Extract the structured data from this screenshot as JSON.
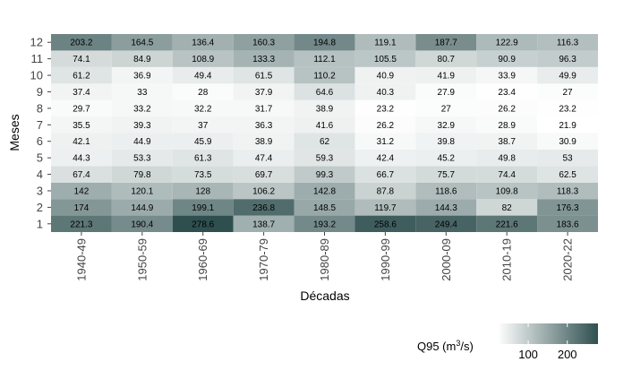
{
  "chart_data": {
    "type": "heatmap",
    "title": "",
    "xlabel": "Décadas",
    "ylabel": "Meses",
    "x": [
      "1940-49",
      "1950-59",
      "1960-69",
      "1970-79",
      "1980-89",
      "1990-99",
      "2000-09",
      "2010-19",
      "2020-22"
    ],
    "y": [
      1,
      2,
      3,
      4,
      5,
      6,
      7,
      8,
      9,
      10,
      11,
      12
    ],
    "values": [
      [
        221.3,
        190.4,
        278.6,
        138.7,
        193.2,
        258.6,
        249.4,
        221.6,
        183.6
      ],
      [
        174,
        144.9,
        199.1,
        236.8,
        148.5,
        119.7,
        144.3,
        82,
        176.3
      ],
      [
        142,
        120.1,
        128,
        106.2,
        142.8,
        87.8,
        118.6,
        109.8,
        118.3
      ],
      [
        67.4,
        79.8,
        73.5,
        69.7,
        99.3,
        66.7,
        75.7,
        74.4,
        62.5
      ],
      [
        44.3,
        53.3,
        61.3,
        47.4,
        59.3,
        42.4,
        45.2,
        49.8,
        53
      ],
      [
        42.1,
        44.9,
        45.9,
        38.9,
        62,
        31.2,
        39.8,
        38.7,
        30.9
      ],
      [
        35.5,
        39.3,
        37,
        36.3,
        41.6,
        26.2,
        32.9,
        28.9,
        21.9
      ],
      [
        29.7,
        33.2,
        32.2,
        31.7,
        38.9,
        23.2,
        27,
        26.2,
        23.2
      ],
      [
        37.4,
        33,
        28,
        37.9,
        64.6,
        40.3,
        27.9,
        23.4,
        27
      ],
      [
        61.2,
        36.9,
        49.4,
        61.5,
        110.2,
        40.9,
        41.9,
        33.9,
        49.9
      ],
      [
        74.1,
        84.9,
        108.9,
        133.3,
        112.1,
        105.5,
        80.7,
        90.9,
        96.3
      ],
      [
        203.2,
        164.5,
        136.4,
        160.3,
        194.8,
        119.1,
        187.7,
        122.9,
        116.3
      ]
    ],
    "color_scale": {
      "low": "#ffffff",
      "high": "#2f4f4f",
      "range": [
        21.9,
        278.6
      ]
    },
    "legend": {
      "title_prefix": "Q95 (m",
      "title_sup": "3",
      "title_suffix": "/s)",
      "ticks": [
        100,
        200
      ],
      "placement": "bottom-right"
    },
    "grid": false
  }
}
